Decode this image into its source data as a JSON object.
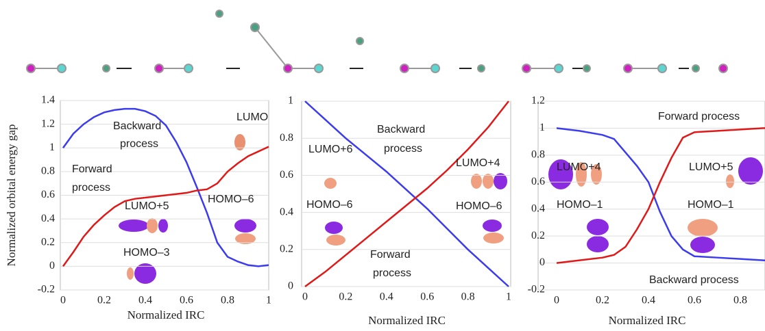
{
  "chart_data": [
    {
      "type": "line",
      "y_label": "Normalized orbital energy gap",
      "x_label": "Normalized IRC",
      "x": [
        0,
        0.05,
        0.1,
        0.15,
        0.2,
        0.25,
        0.3,
        0.35,
        0.4,
        0.45,
        0.5,
        0.55,
        0.6,
        0.65,
        0.7,
        0.75,
        0.8,
        0.85,
        0.9,
        0.95,
        1
      ],
      "series": [
        {
          "color": "#3b3bf0",
          "values": [
            1.0,
            1.12,
            1.2,
            1.26,
            1.3,
            1.32,
            1.33,
            1.33,
            1.31,
            1.27,
            1.19,
            1.05,
            0.88,
            0.67,
            0.45,
            0.2,
            0.08,
            0.04,
            0.01,
            0,
            0.01
          ]
        },
        {
          "color": "#e01818",
          "values": [
            0,
            0.12,
            0.25,
            0.35,
            0.43,
            0.5,
            0.55,
            0.57,
            0.58,
            0.59,
            0.6,
            0.61,
            0.62,
            0.64,
            0.65,
            0.7,
            0.8,
            0.87,
            0.93,
            0.97,
            1.01
          ]
        }
      ],
      "xlim": [
        0,
        1
      ],
      "xticks": [
        0,
        0.2,
        0.4,
        0.6,
        0.8,
        1
      ],
      "ylim": [
        -0.2,
        1.4
      ],
      "yticks": [
        -0.2,
        0,
        0.2,
        0.4,
        0.6,
        0.8,
        1,
        1.2,
        1.4
      ],
      "grid": true,
      "annotations": [
        "LUMO",
        "Backward",
        "process",
        "Forward",
        "process",
        "LUMO+5",
        "HOMO–3",
        "HOMO–6"
      ]
    },
    {
      "type": "line",
      "x_label": "Normalized IRC",
      "x": [
        0,
        0.1,
        0.2,
        0.3,
        0.4,
        0.5,
        0.6,
        0.7,
        0.8,
        0.9,
        1
      ],
      "series": [
        {
          "color": "#3b3bf0",
          "values": [
            1,
            0.9,
            0.8,
            0.71,
            0.62,
            0.52,
            0.42,
            0.31,
            0.2,
            0.1,
            0
          ]
        },
        {
          "color": "#e01818",
          "values": [
            0,
            0.08,
            0.17,
            0.26,
            0.35,
            0.44,
            0.53,
            0.63,
            0.74,
            0.86,
            1
          ]
        }
      ],
      "xlim": [
        0,
        1
      ],
      "xticks": [
        0,
        0.2,
        0.4,
        0.6,
        0.8,
        1
      ],
      "ylim": [
        0,
        1
      ],
      "yticks": [
        0,
        0.2,
        0.4,
        0.6,
        0.8,
        1
      ],
      "grid": true,
      "annotations": [
        "Backward",
        "process",
        "LUMO+6",
        "LUMO+4",
        "HOMO–6",
        "HOMO–6",
        "Forward",
        "process"
      ]
    },
    {
      "type": "line",
      "x_label": "Normalized IRC",
      "x": [
        0,
        0.1,
        0.2,
        0.25,
        0.3,
        0.35,
        0.4,
        0.45,
        0.5,
        0.55,
        0.6,
        0.7,
        0.8,
        0.9,
        1
      ],
      "series": [
        {
          "color": "#3b3bf0",
          "values": [
            1.0,
            0.98,
            0.95,
            0.92,
            0.82,
            0.72,
            0.6,
            0.38,
            0.2,
            0.1,
            0.05,
            0.04,
            0.03,
            0.02,
            0.01
          ]
        },
        {
          "color": "#e01818",
          "values": [
            0,
            0.02,
            0.04,
            0.06,
            0.12,
            0.25,
            0.4,
            0.6,
            0.78,
            0.93,
            0.97,
            0.98,
            0.99,
            1.0,
            1.0
          ]
        }
      ],
      "xlim": [
        0,
        1
      ],
      "xticks": [
        0,
        0.2,
        0.4,
        0.6,
        0.8
      ],
      "ylim": [
        -0.2,
        1.2
      ],
      "yticks": [
        -0.2,
        0,
        0.2,
        0.4,
        0.6,
        0.8,
        1,
        1.2
      ],
      "grid": true,
      "annotations": [
        "Forward process",
        "LUMO+4",
        "LUMO+5",
        "HOMO–1",
        "HOMO–1",
        "Backward process"
      ]
    }
  ]
}
